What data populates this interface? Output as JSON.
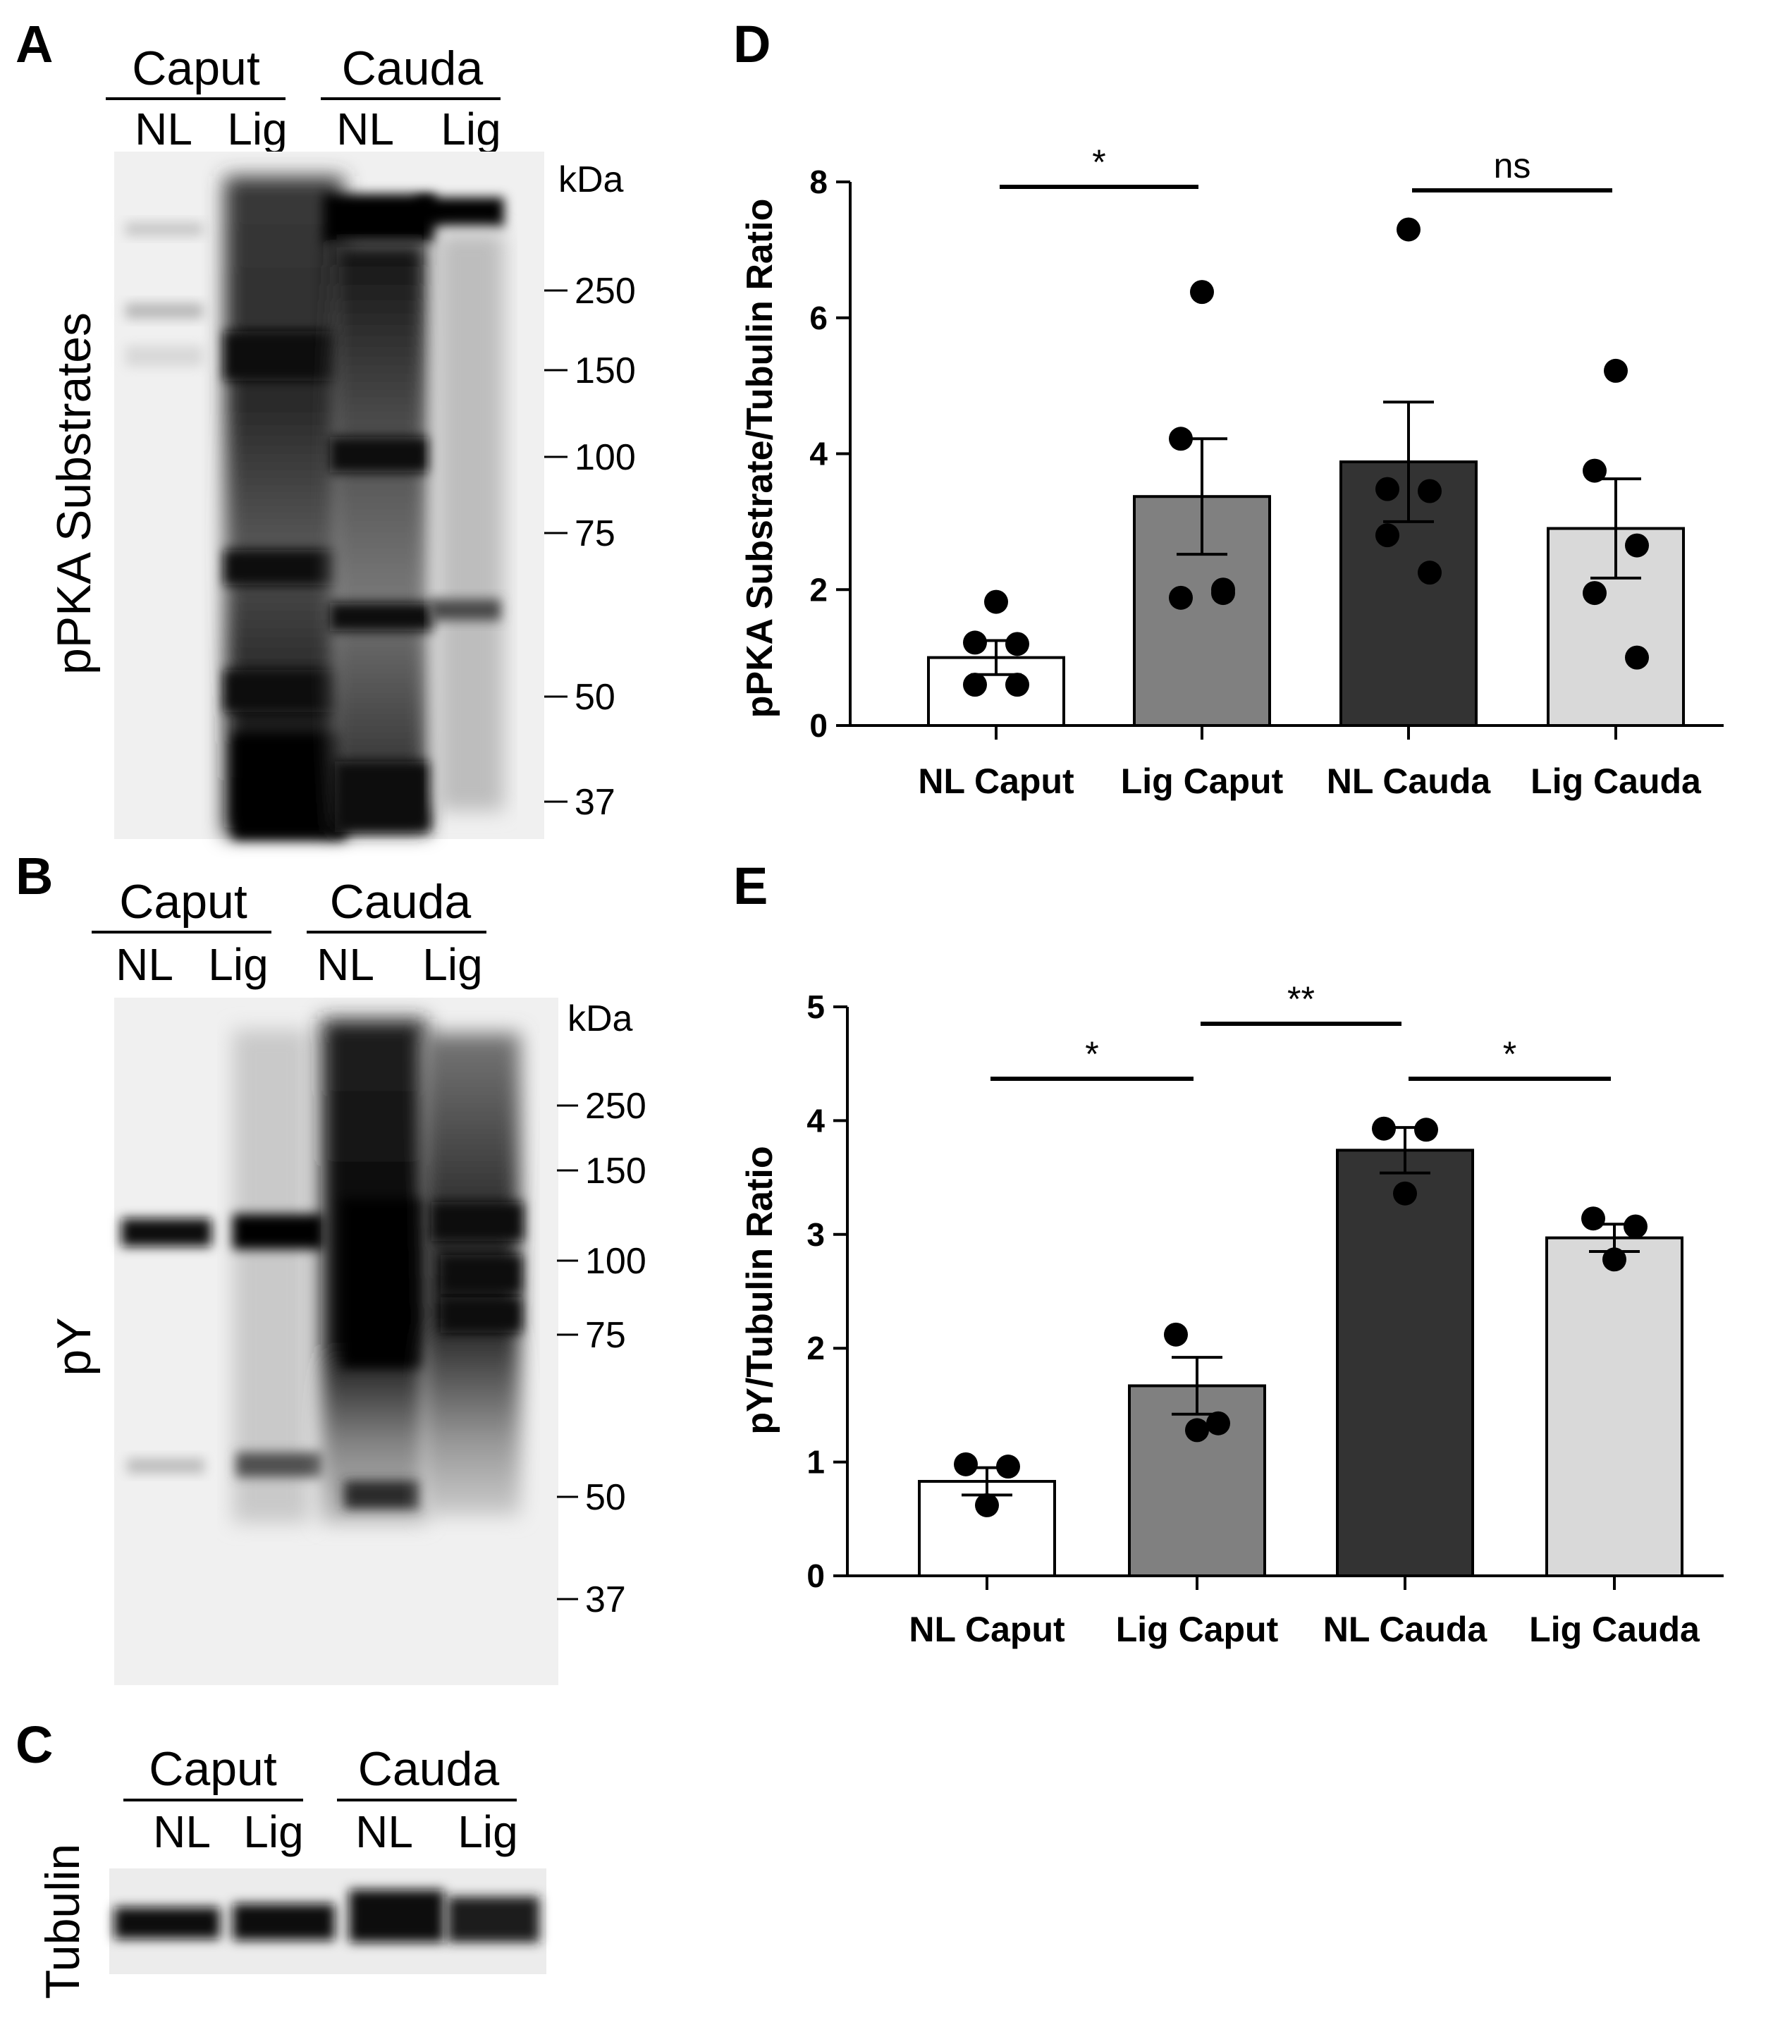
{
  "blots": {
    "A": {
      "letter": "A",
      "group1": "Caput",
      "group2": "Cauda",
      "lanes": [
        "NL",
        "Lig",
        "NL",
        "Lig"
      ],
      "ylabel": "pPKA Substrates",
      "kda_label": "kDa",
      "markers": [
        "250",
        "150",
        "100",
        "75",
        "50",
        "37"
      ]
    },
    "B": {
      "letter": "B",
      "group1": "Caput",
      "group2": "Cauda",
      "lanes": [
        "NL",
        "Lig",
        "NL",
        "Lig"
      ],
      "ylabel": "pY",
      "kda_label": "kDa",
      "markers": [
        "250",
        "150",
        "100",
        "75",
        "50",
        "37"
      ]
    },
    "C": {
      "letter": "C",
      "group1": "Caput",
      "group2": "Cauda",
      "lanes": [
        "NL",
        "Lig",
        "NL",
        "Lig"
      ],
      "ylabel": "Tubulin"
    }
  },
  "chart_data": [
    {
      "panel": "D",
      "type": "bar",
      "categories": [
        "NL Caput",
        "Lig Caput",
        "NL Cauda",
        "Lig Cauda"
      ],
      "values": [
        1.0,
        3.37,
        3.88,
        2.9
      ],
      "sem": [
        0.25,
        0.85,
        0.88,
        0.73
      ],
      "points": [
        [
          1.82,
          1.22,
          1.2,
          0.6,
          0.6
        ],
        [
          6.38,
          4.22,
          2.0,
          1.88,
          1.95
        ],
        [
          7.3,
          3.48,
          3.45,
          2.8,
          2.25
        ],
        [
          5.22,
          3.75,
          2.65,
          1.95,
          1.0
        ]
      ],
      "bar_colors": [
        "#ffffff",
        "#808080",
        "#333333",
        "#d9d9d9"
      ],
      "ylabel": "pPKA  Substrate/Tubulin  Ratio",
      "ylim": [
        0,
        8
      ],
      "yticks": [
        "0",
        "2",
        "4",
        "6",
        "8"
      ],
      "significance": [
        {
          "from": 0,
          "to": 1,
          "label": "*"
        },
        {
          "from": 2,
          "to": 3,
          "label": "ns"
        }
      ]
    },
    {
      "panel": "E",
      "type": "bar",
      "categories": [
        "NL Caput",
        "Lig Caput",
        "NL Cauda",
        "Lig Cauda"
      ],
      "values": [
        0.83,
        1.67,
        3.74,
        2.97
      ],
      "sem": [
        0.12,
        0.25,
        0.2,
        0.12
      ],
      "points": [
        [
          0.98,
          0.96,
          0.62
        ],
        [
          2.12,
          1.34,
          1.28
        ],
        [
          3.93,
          3.92,
          3.36
        ],
        [
          3.14,
          3.07,
          2.78
        ]
      ],
      "bar_colors": [
        "#ffffff",
        "#808080",
        "#333333",
        "#d9d9d9"
      ],
      "ylabel": "pY/Tubulin Ratio",
      "ylim": [
        0,
        5
      ],
      "yticks": [
        "0",
        "1",
        "2",
        "3",
        "4",
        "5"
      ],
      "significance": [
        {
          "from": 0,
          "to": 1,
          "label": "*"
        },
        {
          "from": 1,
          "to": 2,
          "label": "**"
        },
        {
          "from": 2,
          "to": 3,
          "label": "*"
        }
      ]
    }
  ],
  "panel_letters": {
    "D": "D",
    "E": "E"
  }
}
